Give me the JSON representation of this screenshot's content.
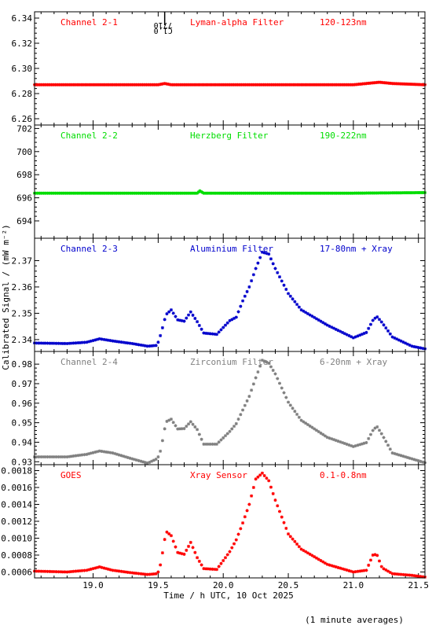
{
  "chart_data": {
    "type": "scatter",
    "xlabel": "Time / h UTC, 10 Oct 2025",
    "ylabel": "Calibrated Signal / (mW m⁻²)",
    "xlim": [
      18.55,
      21.55
    ],
    "xticks": [
      "19.0",
      "19.5",
      "20.0",
      "20.5",
      "21.0",
      "21.5"
    ],
    "footer": "(1 minute averages)",
    "event_marker": {
      "x": 19.55,
      "labels": [
        "7710",
        "C1.0"
      ]
    },
    "panels": [
      {
        "channel": "Channel 2-1",
        "filter": "Lyman-alpha Filter",
        "band": "120-123nm",
        "color": "#ff0000",
        "ylim": [
          6.255,
          6.345
        ],
        "yticks": [
          "6.26",
          "6.28",
          "6.30",
          "6.32",
          "6.34"
        ],
        "x": [
          18.55,
          19.0,
          19.5,
          19.55,
          19.6,
          20.0,
          20.5,
          21.0,
          21.1,
          21.2,
          21.3,
          21.55
        ],
        "y": [
          6.287,
          6.287,
          6.287,
          6.288,
          6.287,
          6.287,
          6.287,
          6.287,
          6.288,
          6.289,
          6.288,
          6.287
        ]
      },
      {
        "channel": "Channel 2-2",
        "filter": "Herzberg Filter",
        "band": "190-222nm",
        "color": "#00dd00",
        "ylim": [
          692.5,
          702.3
        ],
        "yticks": [
          "694",
          "696",
          "698",
          "700",
          "702"
        ],
        "x": [
          18.55,
          19.0,
          19.5,
          19.8,
          19.82,
          19.85,
          20.5,
          21.0,
          21.55
        ],
        "y": [
          696.4,
          696.4,
          696.4,
          696.4,
          696.6,
          696.4,
          696.4,
          696.4,
          696.45
        ]
      },
      {
        "channel": "Channel 2-3",
        "filter": "Aluminium Filter",
        "band": "17-80nm + Xray",
        "color": "#0000cc",
        "ylim": [
          2.3355,
          2.3785
        ],
        "yticks": [
          "2.34",
          "2.35",
          "2.36",
          "2.37"
        ],
        "x": [
          18.55,
          18.8,
          18.95,
          19.05,
          19.15,
          19.3,
          19.42,
          19.49,
          19.5,
          19.52,
          19.56,
          19.6,
          19.65,
          19.7,
          19.75,
          19.8,
          19.85,
          19.95,
          20.05,
          20.1,
          20.15,
          20.2,
          20.25,
          20.3,
          20.35,
          20.4,
          20.5,
          20.6,
          20.8,
          21.0,
          21.1,
          21.15,
          21.18,
          21.22,
          21.3,
          21.45,
          21.55
        ],
        "y": [
          2.3387,
          2.3385,
          2.339,
          2.3403,
          2.3395,
          2.3385,
          2.3375,
          2.3378,
          2.339,
          2.342,
          2.3495,
          2.3513,
          2.3475,
          2.347,
          2.3505,
          2.3468,
          2.3425,
          2.342,
          2.3472,
          2.3485,
          2.3547,
          2.36,
          2.367,
          2.3732,
          2.3725,
          2.367,
          2.3575,
          2.3513,
          2.3455,
          2.3407,
          2.3427,
          2.3473,
          2.3488,
          2.3465,
          2.341,
          2.3375,
          2.3365
        ]
      },
      {
        "channel": "Channel 2-4",
        "filter": "Zirconium Filter",
        "band": "6-20nm + Xray",
        "color": "#808080",
        "ylim": [
          0.9285,
          0.9865
        ],
        "yticks": [
          "0.93",
          "0.94",
          "0.95",
          "0.96",
          "0.97",
          "0.98"
        ],
        "x": [
          18.55,
          18.8,
          18.95,
          19.05,
          19.15,
          19.3,
          19.42,
          19.49,
          19.5,
          19.52,
          19.56,
          19.6,
          19.65,
          19.7,
          19.75,
          19.8,
          19.85,
          19.95,
          20.05,
          20.1,
          20.15,
          20.2,
          20.25,
          20.3,
          20.35,
          20.4,
          20.5,
          20.6,
          20.8,
          21.0,
          21.1,
          21.15,
          21.18,
          21.22,
          21.3,
          21.45,
          21.55
        ],
        "y": [
          0.9325,
          0.9325,
          0.9338,
          0.9355,
          0.9345,
          0.9315,
          0.9293,
          0.9315,
          0.9325,
          0.936,
          0.9505,
          0.9518,
          0.9468,
          0.947,
          0.9505,
          0.9465,
          0.939,
          0.939,
          0.9455,
          0.9495,
          0.9565,
          0.9635,
          0.973,
          0.982,
          0.9805,
          0.975,
          0.9605,
          0.9512,
          0.9425,
          0.9378,
          0.9398,
          0.946,
          0.9482,
          0.944,
          0.9345,
          0.9315,
          0.9295
        ]
      },
      {
        "channel": "GOES",
        "filter": "Xray Sensor",
        "band": "0.1-0.8nm",
        "color": "#ff0000",
        "ylim": [
          0.00053,
          0.00187
        ],
        "yticks": [
          "0.0006",
          "0.0008",
          "0.0010",
          "0.0012",
          "0.0014",
          "0.0016",
          "0.0018"
        ],
        "x": [
          18.55,
          18.8,
          18.95,
          19.05,
          19.15,
          19.3,
          19.42,
          19.49,
          19.5,
          19.52,
          19.56,
          19.6,
          19.65,
          19.7,
          19.75,
          19.8,
          19.85,
          19.95,
          20.05,
          20.1,
          20.15,
          20.2,
          20.25,
          20.3,
          20.35,
          20.4,
          20.5,
          20.6,
          20.8,
          21.0,
          21.1,
          21.15,
          21.18,
          21.22,
          21.3,
          21.45,
          21.55
        ],
        "y": [
          0.00061,
          0.0006,
          0.00062,
          0.00066,
          0.00062,
          0.00059,
          0.00057,
          0.00058,
          0.0006,
          0.0007,
          0.00108,
          0.00103,
          0.00083,
          0.00081,
          0.00095,
          0.00077,
          0.00064,
          0.00063,
          0.00084,
          0.00098,
          0.00118,
          0.0014,
          0.0017,
          0.00177,
          0.00168,
          0.00145,
          0.00105,
          0.00087,
          0.00069,
          0.0006,
          0.00062,
          0.0008,
          0.00081,
          0.00065,
          0.00058,
          0.00056,
          0.00054
        ]
      }
    ]
  }
}
